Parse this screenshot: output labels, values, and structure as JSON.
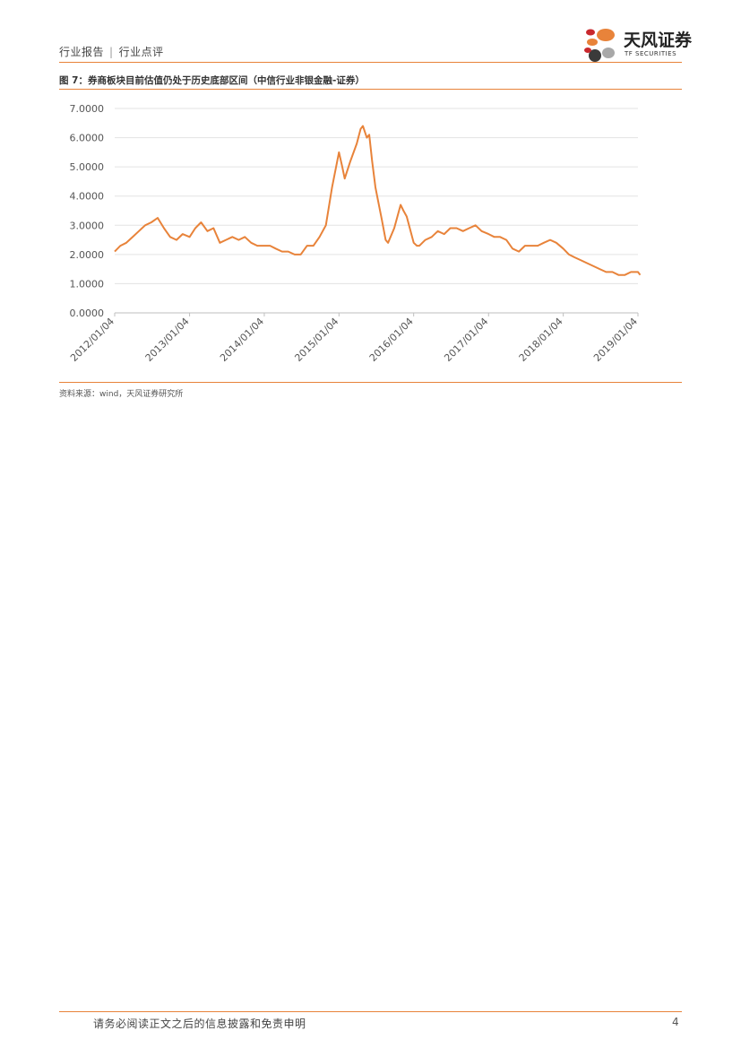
{
  "header": {
    "category": "行业报告",
    "separator": "|",
    "subcategory": "行业点评"
  },
  "logo": {
    "name_cn": "天风证券",
    "name_en": "TF SECURITIES",
    "colors": [
      "#C9282D",
      "#E8833A",
      "#3A3A3A",
      "#A8A8A8"
    ]
  },
  "figure": {
    "title": "图 7：券商板块目前估值仍处于历史底部区间（中信行业非银金融-证券）"
  },
  "chart_data": {
    "type": "line",
    "title": "",
    "xlabel": "",
    "ylabel": "",
    "ylim": [
      0,
      7
    ],
    "yticks": [
      "0.0000",
      "1.0000",
      "2.0000",
      "3.0000",
      "4.0000",
      "5.0000",
      "6.0000",
      "7.0000"
    ],
    "xticks": [
      "2012/01/04",
      "2013/01/04",
      "2014/01/04",
      "2015/01/04",
      "2016/01/04",
      "2017/01/04",
      "2018/01/04",
      "2019/01/04"
    ],
    "grid": "horizontal",
    "legend": "none",
    "color": "#E8833A",
    "series": [
      {
        "x": [
          "2012/01/04",
          "2012/02/01",
          "2012/03/01",
          "2012/04/01",
          "2012/05/01",
          "2012/06/01",
          "2012/07/01",
          "2012/08/01",
          "2012/09/01",
          "2012/10/01",
          "2012/11/01",
          "2012/12/01",
          "2013/01/04",
          "2013/02/01",
          "2013/03/01",
          "2013/04/01",
          "2013/05/01",
          "2013/06/01",
          "2013/07/01",
          "2013/08/01",
          "2013/09/01",
          "2013/10/01",
          "2013/11/01",
          "2013/12/01",
          "2014/01/04",
          "2014/02/01",
          "2014/03/01",
          "2014/04/01",
          "2014/05/01",
          "2014/06/01",
          "2014/07/01",
          "2014/08/01",
          "2014/09/01",
          "2014/10/01",
          "2014/11/01",
          "2014/12/01",
          "2015/01/04",
          "2015/01/20",
          "2015/02/01",
          "2015/03/01",
          "2015/04/01",
          "2015/04/20",
          "2015/05/01",
          "2015/05/20",
          "2015/06/01",
          "2015/06/15",
          "2015/07/01",
          "2015/07/15",
          "2015/08/01",
          "2015/08/20",
          "2015/09/01",
          "2015/10/01",
          "2015/11/01",
          "2015/11/15",
          "2015/12/01",
          "2016/01/04",
          "2016/01/20",
          "2016/02/01",
          "2016/03/01",
          "2016/04/01",
          "2016/05/01",
          "2016/06/01",
          "2016/07/01",
          "2016/08/01",
          "2016/09/01",
          "2016/10/01",
          "2016/11/01",
          "2016/12/01",
          "2017/01/04",
          "2017/02/01",
          "2017/03/01",
          "2017/04/01",
          "2017/05/01",
          "2017/06/01",
          "2017/07/01",
          "2017/08/01",
          "2017/09/01",
          "2017/10/01",
          "2017/11/01",
          "2017/12/01",
          "2018/01/04",
          "2018/02/01",
          "2018/03/01",
          "2018/04/01",
          "2018/05/01",
          "2018/06/01",
          "2018/07/01",
          "2018/08/01",
          "2018/09/01",
          "2018/10/01",
          "2018/11/01",
          "2018/12/01",
          "2019/01/04",
          "2019/01/15"
        ],
        "values": [
          2.1,
          2.3,
          2.4,
          2.6,
          2.8,
          3.0,
          3.1,
          3.25,
          2.9,
          2.6,
          2.5,
          2.7,
          2.6,
          2.9,
          3.1,
          2.8,
          2.9,
          2.4,
          2.5,
          2.6,
          2.5,
          2.6,
          2.4,
          2.3,
          2.3,
          2.3,
          2.2,
          2.1,
          2.1,
          2.0,
          2.0,
          2.3,
          2.3,
          2.6,
          3.0,
          4.3,
          5.5,
          5.0,
          4.6,
          5.2,
          5.8,
          6.3,
          6.4,
          6.0,
          6.1,
          5.2,
          4.3,
          3.8,
          3.2,
          2.5,
          2.4,
          2.9,
          3.7,
          3.5,
          3.3,
          2.4,
          2.3,
          2.3,
          2.5,
          2.6,
          2.8,
          2.7,
          2.9,
          2.9,
          2.8,
          2.9,
          3.0,
          2.8,
          2.7,
          2.6,
          2.6,
          2.5,
          2.2,
          2.1,
          2.3,
          2.3,
          2.3,
          2.4,
          2.5,
          2.4,
          2.2,
          2.0,
          1.9,
          1.8,
          1.7,
          1.6,
          1.5,
          1.4,
          1.4,
          1.3,
          1.3,
          1.4,
          1.4,
          1.3
        ]
      }
    ]
  },
  "source": "资料来源：wind，天风证券研究所",
  "footer": {
    "disclaimer": "请务必阅读正文之后的信息披露和免责申明",
    "page_number": "4"
  }
}
